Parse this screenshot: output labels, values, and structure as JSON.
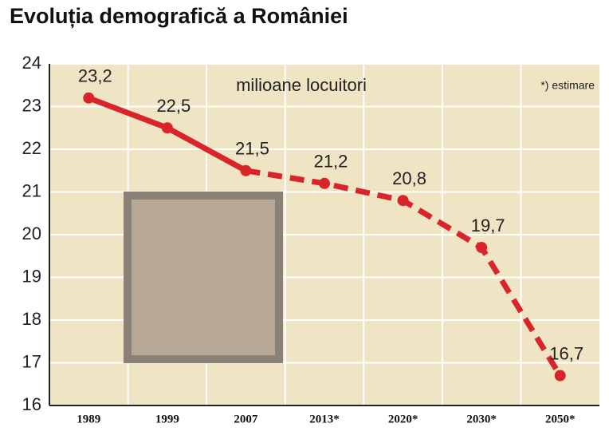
{
  "chart_data": {
    "type": "line",
    "title": "Evoluția demografică a României",
    "subtitle": "milioane locuitori",
    "note": "*) estimare",
    "categories": [
      "1989",
      "1999",
      "2007",
      "2013*",
      "2020*",
      "2030*",
      "2050*"
    ],
    "values": [
      23.2,
      22.5,
      21.5,
      21.2,
      20.8,
      19.7,
      16.7
    ],
    "value_labels": [
      "23,2",
      "22,5",
      "21,5",
      "21,2",
      "20,8",
      "19,7",
      "16,7"
    ],
    "dashed_from_index": 2,
    "color": "#d9252a",
    "ylim": [
      16,
      24
    ],
    "yticks": [
      16,
      17,
      18,
      19,
      20,
      21,
      22,
      23,
      24
    ],
    "grid": true
  }
}
